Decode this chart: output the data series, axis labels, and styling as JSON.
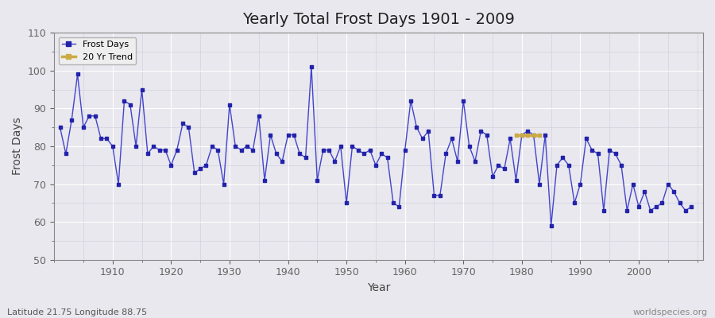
{
  "title": "Yearly Total Frost Days 1901 - 2009",
  "xlabel": "Year",
  "ylabel": "Frost Days",
  "subtitle": "Latitude 21.75 Longitude 88.75",
  "watermark": "worldspecies.org",
  "ylim": [
    50,
    110
  ],
  "yticks": [
    50,
    60,
    70,
    80,
    90,
    100,
    110
  ],
  "xlim": [
    1901,
    2009
  ],
  "line_color": "#4444cc",
  "marker_color": "#2222aa",
  "trend_color": "#ccaa44",
  "bg_color": "#e8e8ee",
  "grid_color": "#ffffff",
  "years": [
    1901,
    1902,
    1903,
    1904,
    1905,
    1906,
    1907,
    1908,
    1909,
    1910,
    1911,
    1912,
    1913,
    1914,
    1915,
    1916,
    1917,
    1918,
    1919,
    1920,
    1921,
    1922,
    1923,
    1924,
    1925,
    1926,
    1927,
    1928,
    1929,
    1930,
    1931,
    1932,
    1933,
    1934,
    1935,
    1936,
    1937,
    1938,
    1939,
    1940,
    1941,
    1942,
    1943,
    1944,
    1945,
    1946,
    1947,
    1948,
    1949,
    1950,
    1951,
    1952,
    1953,
    1954,
    1955,
    1956,
    1957,
    1958,
    1959,
    1960,
    1961,
    1962,
    1963,
    1964,
    1965,
    1966,
    1967,
    1968,
    1969,
    1970,
    1971,
    1972,
    1973,
    1974,
    1975,
    1976,
    1977,
    1978,
    1979,
    1980,
    1981,
    1982,
    1983,
    1984,
    1985,
    1986,
    1987,
    1988,
    1989,
    1990,
    1991,
    1992,
    1993,
    1994,
    1995,
    1996,
    1997,
    1998,
    1999,
    2000,
    2001,
    2002,
    2003,
    2004,
    2005,
    2006,
    2007,
    2008,
    2009
  ],
  "frost_days": [
    85,
    78,
    87,
    99,
    85,
    88,
    88,
    82,
    82,
    80,
    70,
    92,
    91,
    80,
    95,
    78,
    80,
    79,
    79,
    75,
    79,
    86,
    85,
    73,
    74,
    75,
    80,
    79,
    70,
    91,
    80,
    79,
    80,
    79,
    88,
    71,
    83,
    78,
    76,
    83,
    83,
    78,
    77,
    101,
    71,
    79,
    79,
    76,
    80,
    65,
    80,
    79,
    78,
    79,
    75,
    78,
    77,
    65,
    64,
    79,
    92,
    85,
    82,
    84,
    67,
    67,
    78,
    82,
    76,
    92,
    80,
    76,
    84,
    83,
    72,
    75,
    74,
    82,
    71,
    83,
    84,
    83,
    70,
    83,
    59,
    75,
    77,
    75,
    65,
    70,
    82,
    79,
    78,
    63,
    79,
    78,
    75,
    63,
    70,
    64,
    68,
    63,
    64,
    65,
    70,
    68,
    65,
    63,
    64
  ],
  "trend_years": [
    1979,
    1980,
    1981,
    1982,
    1983
  ],
  "trend_values": [
    83,
    83,
    83,
    83,
    83
  ]
}
